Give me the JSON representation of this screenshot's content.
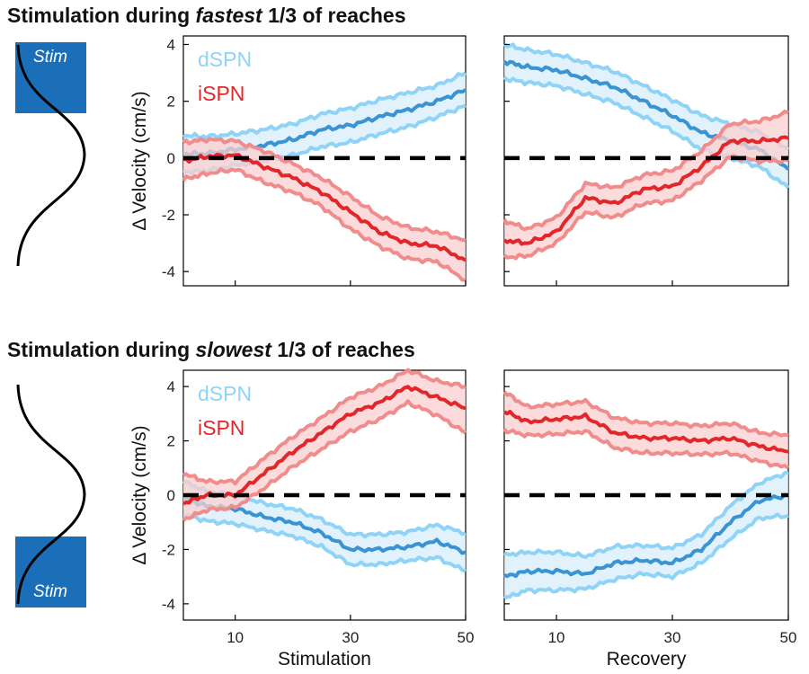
{
  "titles": {
    "top": {
      "prefix": "Stimulation during ",
      "emph": "fastest",
      "suffix": " 1/3 of reaches"
    },
    "bottom": {
      "prefix": "Stimulation during ",
      "emph": "slowest",
      "suffix": " 1/3 of reaches"
    }
  },
  "stim_label": "Stim",
  "colors": {
    "dSPN_line": "#3a93d3",
    "dSPN_band_edge": "#8fd3f7",
    "dSPN_fill": "#d7eefb",
    "iSPN_line": "#e3262a",
    "iSPN_band_edge": "#f18c8c",
    "iSPN_fill": "#f9cfcf",
    "stim_box": "#1a6fb8",
    "zero_line": "#000000"
  },
  "chart_data": [
    {
      "type": "line",
      "panel": "fastest-stimulation",
      "title": "",
      "xlabel": "",
      "ylabel": "Δ Velocity (cm/s)",
      "xlim": [
        1,
        50
      ],
      "ylim": [
        -4.5,
        4.3
      ],
      "xticks": [
        10,
        30,
        50
      ],
      "xtick_labels": [
        "",
        "",
        ""
      ],
      "yticks": [
        -4,
        -2,
        0,
        2,
        4
      ],
      "ytick_labels": [
        "-4",
        "-2",
        "0",
        "2",
        "4"
      ],
      "legend": [
        "dSPN",
        "iSPN"
      ],
      "legend_position": "top-left",
      "x": [
        1,
        5,
        10,
        15,
        20,
        25,
        30,
        35,
        40,
        45,
        50
      ],
      "series": [
        {
          "name": "dSPN",
          "mean": [
            0.15,
            0.15,
            0.3,
            0.45,
            0.65,
            1.0,
            1.15,
            1.45,
            1.7,
            2.0,
            2.4
          ],
          "lower": [
            -0.5,
            -0.45,
            -0.25,
            -0.1,
            0.1,
            0.4,
            0.55,
            0.85,
            1.1,
            1.45,
            1.85
          ],
          "upper": [
            0.8,
            0.75,
            0.85,
            1.0,
            1.2,
            1.55,
            1.75,
            2.05,
            2.3,
            2.55,
            3.0
          ]
        },
        {
          "name": "iSPN",
          "mean": [
            -0.1,
            0.05,
            0.1,
            -0.3,
            -0.7,
            -1.2,
            -1.9,
            -2.6,
            -3.0,
            -3.1,
            -3.6
          ],
          "lower": [
            -0.75,
            -0.55,
            -0.4,
            -0.85,
            -1.2,
            -1.7,
            -2.5,
            -3.1,
            -3.55,
            -3.65,
            -4.3
          ],
          "upper": [
            0.55,
            0.65,
            0.6,
            0.25,
            -0.2,
            -0.7,
            -1.35,
            -2.05,
            -2.45,
            -2.6,
            -2.9
          ]
        }
      ]
    },
    {
      "type": "line",
      "panel": "fastest-recovery",
      "title": "",
      "xlabel": "",
      "ylabel": "",
      "xlim": [
        1,
        50
      ],
      "ylim": [
        -4.5,
        4.3
      ],
      "xticks": [
        10,
        30,
        50
      ],
      "xtick_labels": [
        "",
        "",
        ""
      ],
      "yticks": [
        -4,
        -2,
        0,
        2,
        4
      ],
      "ytick_labels": [
        "",
        "",
        "",
        "",
        ""
      ],
      "legend": [],
      "x": [
        1,
        5,
        10,
        15,
        20,
        25,
        30,
        35,
        40,
        45,
        50
      ],
      "series": [
        {
          "name": "dSPN",
          "mean": [
            3.4,
            3.2,
            3.1,
            2.8,
            2.5,
            2.0,
            1.5,
            0.9,
            0.6,
            0.3,
            -0.4
          ],
          "lower": [
            2.8,
            2.65,
            2.55,
            2.25,
            1.95,
            1.45,
            0.95,
            0.3,
            0.0,
            -0.3,
            -1.05
          ],
          "upper": [
            4.0,
            3.8,
            3.65,
            3.35,
            3.05,
            2.55,
            2.05,
            1.5,
            1.2,
            0.9,
            0.3
          ]
        },
        {
          "name": "iSPN",
          "mean": [
            -2.9,
            -3.0,
            -2.6,
            -1.4,
            -1.6,
            -1.1,
            -1.0,
            -0.3,
            0.6,
            0.6,
            0.7
          ],
          "lower": [
            -3.5,
            -3.45,
            -3.0,
            -1.9,
            -2.1,
            -1.6,
            -1.5,
            -0.8,
            0.05,
            -0.1,
            -0.1
          ],
          "upper": [
            -2.2,
            -2.5,
            -2.1,
            -0.9,
            -1.05,
            -0.6,
            -0.45,
            0.25,
            1.2,
            1.3,
            1.6
          ]
        }
      ]
    },
    {
      "type": "line",
      "panel": "slowest-stimulation",
      "title": "",
      "xlabel": "Stimulation",
      "ylabel": "Δ Velocity (cm/s)",
      "xlim": [
        1,
        50
      ],
      "ylim": [
        -4.6,
        4.6
      ],
      "xticks": [
        10,
        30,
        50
      ],
      "xtick_labels": [
        "10",
        "30",
        "50"
      ],
      "yticks": [
        -4,
        -2,
        0,
        2,
        4
      ],
      "ytick_labels": [
        "-4",
        "-2",
        "0",
        "2",
        "4"
      ],
      "legend": [
        "dSPN",
        "iSPN"
      ],
      "legend_position": "top-left",
      "x": [
        1,
        5,
        10,
        15,
        20,
        25,
        30,
        35,
        40,
        45,
        50
      ],
      "series": [
        {
          "name": "dSPN",
          "mean": [
            -0.1,
            -0.4,
            -0.5,
            -0.8,
            -1.0,
            -1.4,
            -2.0,
            -2.0,
            -1.9,
            -1.7,
            -2.1
          ],
          "lower": [
            -0.7,
            -0.95,
            -1.05,
            -1.3,
            -1.5,
            -1.9,
            -2.55,
            -2.55,
            -2.4,
            -2.3,
            -2.8
          ],
          "upper": [
            0.5,
            0.15,
            0.0,
            -0.3,
            -0.5,
            -0.9,
            -1.45,
            -1.45,
            -1.35,
            -1.1,
            -1.4
          ]
        },
        {
          "name": "iSPN",
          "mean": [
            -0.3,
            0.0,
            0.0,
            0.8,
            1.6,
            2.3,
            3.0,
            3.4,
            4.0,
            3.6,
            3.2
          ],
          "lower": [
            -0.9,
            -0.55,
            -0.45,
            0.25,
            1.05,
            1.7,
            2.35,
            2.8,
            3.4,
            2.95,
            2.3
          ],
          "upper": [
            0.8,
            0.5,
            0.5,
            1.35,
            2.15,
            2.85,
            3.6,
            4.0,
            4.6,
            4.2,
            4.0
          ]
        }
      ]
    },
    {
      "type": "line",
      "panel": "slowest-recovery",
      "title": "",
      "xlabel": "Recovery",
      "ylabel": "",
      "xlim": [
        1,
        50
      ],
      "ylim": [
        -4.6,
        4.6
      ],
      "xticks": [
        10,
        30,
        50
      ],
      "xtick_labels": [
        "10",
        "30",
        "50"
      ],
      "yticks": [
        -4,
        -2,
        0,
        2,
        4
      ],
      "ytick_labels": [
        "",
        "",
        "",
        "",
        ""
      ],
      "legend": [],
      "x": [
        1,
        5,
        10,
        15,
        20,
        25,
        30,
        35,
        40,
        45,
        50
      ],
      "series": [
        {
          "name": "dSPN",
          "mean": [
            -3.0,
            -2.8,
            -2.8,
            -2.9,
            -2.5,
            -2.4,
            -2.5,
            -2.0,
            -1.0,
            -0.2,
            0.0
          ],
          "lower": [
            -3.8,
            -3.5,
            -3.5,
            -3.45,
            -3.1,
            -2.9,
            -3.0,
            -2.5,
            -1.6,
            -0.85,
            -0.75
          ],
          "upper": [
            -2.2,
            -2.1,
            -2.1,
            -2.25,
            -1.9,
            -1.85,
            -1.95,
            -1.45,
            -0.4,
            0.45,
            0.85
          ]
        },
        {
          "name": "iSPN",
          "mean": [
            3.1,
            2.7,
            2.8,
            2.9,
            2.3,
            2.1,
            2.1,
            2.0,
            2.1,
            1.8,
            1.6
          ],
          "lower": [
            2.4,
            2.2,
            2.25,
            2.35,
            1.75,
            1.55,
            1.55,
            1.5,
            1.55,
            1.25,
            1.0
          ],
          "upper": [
            3.8,
            3.25,
            3.35,
            3.45,
            2.85,
            2.65,
            2.65,
            2.55,
            2.65,
            2.3,
            2.2
          ]
        }
      ]
    }
  ]
}
